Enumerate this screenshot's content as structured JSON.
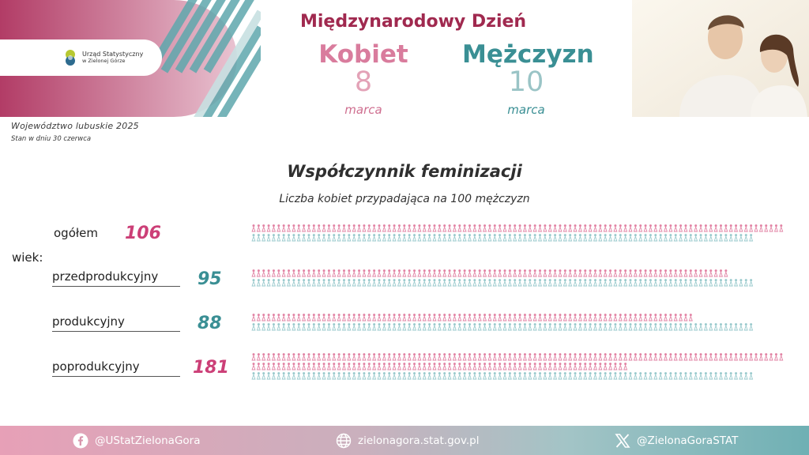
{
  "logo": {
    "line1": "Urząd Statystyczny",
    "line2": "w Zielonej Górze"
  },
  "region": "Województwo lubuskie 2025",
  "as_of": "Stan w dniu 30 czerwca",
  "header": {
    "intl_day": "Międzynarodowy  Dzień",
    "women_label": "Kobiet",
    "women_day": "8",
    "women_month": "marca",
    "men_label": "Mężczyzn",
    "men_day": "10",
    "men_month": "marca"
  },
  "title": "Współczynnik feminizacji",
  "subtitle": "Liczba kobiet przypadająca na 100 mężczyzn",
  "age_label": "wiek:",
  "rows": [
    {
      "label": "ogółem",
      "value": "106",
      "women": 106,
      "men": 100
    },
    {
      "label": "przedprodukcyjny",
      "value": "95",
      "women": 95,
      "men": 100
    },
    {
      "label": "produkcyjny",
      "value": "88",
      "women": 88,
      "men": 100
    },
    {
      "label": "poprodukcyjny",
      "value": "181",
      "women": 181,
      "men": 100
    }
  ],
  "colors": {
    "women": "#e283a4",
    "men": "#9acacd",
    "accent": "#a0294f",
    "teal": "#3a8f94"
  },
  "footer": {
    "facebook": "@UStatZielonaGora",
    "website": "zielonagora.stat.gov.pl",
    "x": "@ZielonaGoraSTAT",
    "icons": [
      "facebook-icon",
      "globe-icon",
      "x-logo-icon"
    ]
  }
}
